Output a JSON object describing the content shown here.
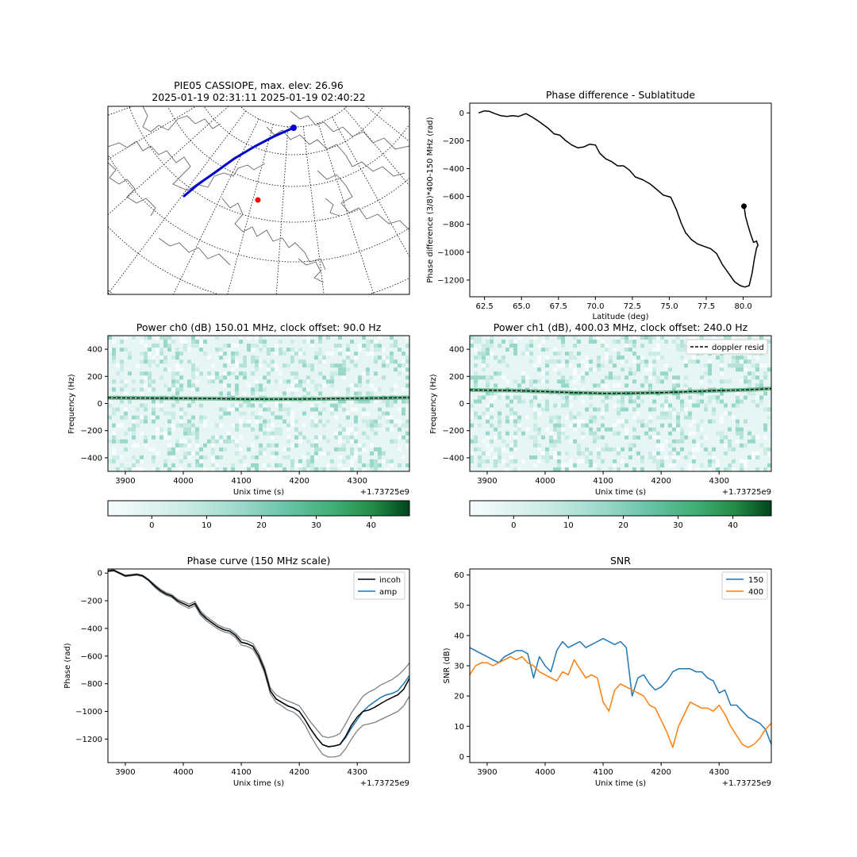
{
  "figure": {
    "map": {
      "title_line1": "PIE05 CASSIOPE, max. elev: 26.96",
      "title_line2": "2025-01-19 02:31:11 2025-01-19 02:40:22",
      "track_color": "#0000cc",
      "station_color": "#ff0000"
    },
    "colorbar": {
      "cmap": "BuGn",
      "ticks": [
        "0",
        "10",
        "20",
        "30",
        "40"
      ]
    }
  },
  "chart_data": [
    {
      "id": "phase_sublat",
      "type": "line",
      "title": "Phase difference - Sublatitude",
      "xlabel": "Latitude (deg)",
      "ylabel": "Phase difference (3/8)*400-150 MHz (rad)",
      "xlim": [
        61.5,
        81.9
      ],
      "ylim": [
        -1320,
        70
      ],
      "xticks": [
        62.5,
        65.0,
        67.5,
        70.0,
        72.5,
        75.0,
        77.5,
        80.0
      ],
      "xtick_labels": [
        "62.5",
        "65.0",
        "67.5",
        "70.0",
        "72.5",
        "75.0",
        "77.5",
        "80.0"
      ],
      "yticks": [
        0,
        -200,
        -400,
        -600,
        -800,
        -1000,
        -1200
      ],
      "ytick_labels": [
        "0",
        "−200",
        "−400",
        "−600",
        "−800",
        "−1000",
        "−1200"
      ],
      "series": [
        {
          "color": "#000000",
          "x": [
            62.1,
            62.5,
            62.8,
            63.2,
            63.6,
            64.0,
            64.4,
            64.8,
            65.3,
            65.8,
            66.3,
            66.8,
            67.2,
            67.6,
            68.0,
            68.4,
            68.8,
            69.2,
            69.6,
            70.0,
            70.3,
            70.7,
            71.1,
            71.5,
            71.9,
            72.3,
            72.7,
            73.2,
            73.7,
            74.1,
            74.6,
            75.1,
            75.5,
            75.8,
            76.1,
            76.5,
            76.9,
            77.4,
            77.8,
            78.2,
            78.6,
            79.0,
            79.4,
            79.8,
            80.1,
            80.4,
            80.6,
            80.75,
            80.9,
            81.0,
            80.9,
            80.7,
            80.5,
            80.3,
            80.15,
            80.1,
            80.05
          ],
          "y": [
            0,
            15,
            12,
            -5,
            -20,
            -25,
            -20,
            -25,
            -5,
            -35,
            -70,
            -110,
            -150,
            -160,
            -200,
            -230,
            -250,
            -245,
            -225,
            -230,
            -290,
            -330,
            -350,
            -380,
            -380,
            -410,
            -460,
            -480,
            -510,
            -545,
            -590,
            -605,
            -700,
            -790,
            -860,
            -910,
            -940,
            -960,
            -975,
            -1010,
            -1090,
            -1150,
            -1210,
            -1240,
            -1250,
            -1240,
            -1150,
            -1050,
            -970,
            -950,
            -920,
            -930,
            -870,
            -800,
            -740,
            -700,
            -670
          ]
        }
      ],
      "markers": [
        {
          "x": 80.05,
          "y": -670
        }
      ]
    },
    {
      "id": "power_ch0",
      "type": "heatmap",
      "title": "Power ch0 (dB) 150.01 MHz, clock offset: 90.0 Hz",
      "xlabel": "Unix time (s)",
      "ylabel": "Frequency (Hz)",
      "offset_label": "+1.73725e9",
      "xlim": [
        3870,
        4390
      ],
      "ylim": [
        -500,
        500
      ],
      "xticks": [
        3900,
        4000,
        4100,
        4200,
        4300
      ],
      "xtick_labels": [
        "3900",
        "4000",
        "4100",
        "4200",
        "4300"
      ],
      "yticks": [
        400,
        200,
        0,
        -200,
        -400
      ],
      "ytick_labels": [
        "400",
        "200",
        "0",
        "−200",
        "−400"
      ],
      "doppler_resid": {
        "x": [
          3870,
          3950,
          4050,
          4100,
          4150,
          4200,
          4250,
          4300,
          4350,
          4390
        ],
        "y": [
          42,
          40,
          36,
          33,
          32,
          33,
          35,
          38,
          41,
          44
        ]
      }
    },
    {
      "id": "power_ch1",
      "type": "heatmap",
      "title": "Power ch1 (dB), 400.03 MHz, clock offset: 240.0 Hz",
      "xlabel": "Unix time (s)",
      "ylabel": "Frequency (Hz)",
      "offset_label": "+1.73725e9",
      "legend": [
        "doppler resid"
      ],
      "xlim": [
        3870,
        4390
      ],
      "ylim": [
        -500,
        500
      ],
      "xticks": [
        3900,
        4000,
        4100,
        4200,
        4300
      ],
      "xtick_labels": [
        "3900",
        "4000",
        "4100",
        "4200",
        "4300"
      ],
      "yticks": [
        400,
        200,
        0,
        -200,
        -400
      ],
      "ytick_labels": [
        "400",
        "200",
        "0",
        "−200",
        "−400"
      ],
      "doppler_resid": {
        "x": [
          3870,
          3950,
          4000,
          4050,
          4100,
          4150,
          4200,
          4250,
          4300,
          4350,
          4390
        ],
        "y": [
          100,
          95,
          88,
          80,
          75,
          76,
          80,
          88,
          95,
          102,
          110
        ]
      }
    },
    {
      "id": "colorbar_ch0",
      "type": "heatmap",
      "title": "",
      "xlim": [
        -8,
        47
      ],
      "xticks": [
        0,
        10,
        20,
        30,
        40
      ]
    },
    {
      "id": "colorbar_ch1",
      "type": "heatmap",
      "title": "",
      "xlim": [
        -8,
        47
      ],
      "xticks": [
        0,
        10,
        20,
        30,
        40
      ]
    },
    {
      "id": "phase_curve",
      "type": "line",
      "title": "Phase curve (150 MHz scale)",
      "xlabel": "Unix time (s)",
      "ylabel": "Phase (rad)",
      "offset_label": "+1.73725e9",
      "legend": [
        "incoh",
        "amp"
      ],
      "xlim": [
        3870,
        4390
      ],
      "ylim": [
        -1370,
        30
      ],
      "xticks": [
        3900,
        4000,
        4100,
        4200,
        4300
      ],
      "xtick_labels": [
        "3900",
        "4000",
        "4100",
        "4200",
        "4300"
      ],
      "yticks": [
        0,
        -200,
        -400,
        -600,
        -800,
        -1000,
        -1200
      ],
      "ytick_labels": [
        "0",
        "−200",
        "−400",
        "−600",
        "−800",
        "−1000",
        "−1200"
      ],
      "x": [
        3870,
        3880,
        3890,
        3900,
        3910,
        3920,
        3930,
        3940,
        3950,
        3960,
        3970,
        3980,
        3990,
        4000,
        4010,
        4020,
        4030,
        4040,
        4050,
        4060,
        4070,
        4080,
        4090,
        4100,
        4110,
        4120,
        4130,
        4140,
        4150,
        4160,
        4170,
        4180,
        4190,
        4200,
        4210,
        4220,
        4230,
        4240,
        4250,
        4260,
        4270,
        4280,
        4290,
        4300,
        4310,
        4320,
        4330,
        4340,
        4350,
        4360,
        4370,
        4380,
        4390
      ],
      "series": [
        {
          "name": "incoh",
          "color": "#000000",
          "values": [
            15,
            20,
            0,
            -20,
            -15,
            -10,
            -20,
            -50,
            -90,
            -125,
            -150,
            -165,
            -200,
            -220,
            -240,
            -220,
            -290,
            -330,
            -360,
            -390,
            -410,
            -420,
            -450,
            -500,
            -510,
            -530,
            -600,
            -700,
            -850,
            -910,
            -935,
            -960,
            -975,
            -1000,
            -1060,
            -1130,
            -1190,
            -1240,
            -1255,
            -1250,
            -1240,
            -1180,
            -1100,
            -1040,
            -1000,
            -990,
            -970,
            -945,
            -920,
            -900,
            -880,
            -840,
            -760
          ]
        },
        {
          "name": "amp",
          "color": "#1f77b4",
          "values": [
            15,
            20,
            0,
            -20,
            -15,
            -10,
            -20,
            -50,
            -90,
            -125,
            -150,
            -165,
            -200,
            -220,
            -240,
            -220,
            -290,
            -330,
            -360,
            -390,
            -410,
            -420,
            -450,
            -500,
            -510,
            -530,
            -600,
            -700,
            -850,
            -910,
            -935,
            -960,
            -975,
            -1000,
            -1060,
            -1130,
            -1190,
            -1240,
            -1255,
            -1250,
            -1240,
            -1190,
            -1120,
            -1060,
            -1000,
            -960,
            -930,
            -900,
            -880,
            -870,
            -850,
            -800,
            -740
          ]
        },
        {
          "color": "#808080",
          "values": [
            20,
            25,
            5,
            -15,
            -10,
            -5,
            -15,
            -45,
            -80,
            -115,
            -140,
            -155,
            -190,
            -205,
            -225,
            -205,
            -275,
            -315,
            -345,
            -375,
            -395,
            -405,
            -435,
            -480,
            -490,
            -510,
            -580,
            -680,
            -830,
            -880,
            -905,
            -925,
            -940,
            -960,
            -1020,
            -1080,
            -1130,
            -1180,
            -1190,
            -1180,
            -1160,
            -1090,
            -1010,
            -950,
            -890,
            -860,
            -840,
            -810,
            -790,
            -770,
            -740,
            -700,
            -650
          ]
        },
        {
          "color": "#808080",
          "values": [
            10,
            15,
            -5,
            -25,
            -20,
            -15,
            -25,
            -55,
            -100,
            -135,
            -160,
            -175,
            -210,
            -235,
            -255,
            -235,
            -305,
            -345,
            -375,
            -405,
            -425,
            -435,
            -465,
            -520,
            -530,
            -550,
            -620,
            -720,
            -870,
            -935,
            -960,
            -990,
            -1005,
            -1040,
            -1100,
            -1180,
            -1250,
            -1310,
            -1330,
            -1330,
            -1320,
            -1270,
            -1200,
            -1140,
            -1100,
            -1090,
            -1080,
            -1060,
            -1040,
            -1020,
            -1000,
            -960,
            -890
          ]
        }
      ]
    },
    {
      "id": "snr",
      "type": "line",
      "title": "SNR",
      "xlabel": "Unix time (s)",
      "ylabel": "SNR (dB)",
      "offset_label": "+1.73725e9",
      "legend": [
        "150",
        "400"
      ],
      "xlim": [
        3870,
        4390
      ],
      "ylim": [
        -2,
        62
      ],
      "xticks": [
        3900,
        4000,
        4100,
        4200,
        4300
      ],
      "xtick_labels": [
        "3900",
        "4000",
        "4100",
        "4200",
        "4300"
      ],
      "yticks": [
        0,
        10,
        20,
        30,
        40,
        50,
        60
      ],
      "ytick_labels": [
        "0",
        "10",
        "20",
        "30",
        "40",
        "50",
        "60"
      ],
      "x": [
        3870,
        3880,
        3890,
        3900,
        3910,
        3920,
        3930,
        3940,
        3950,
        3960,
        3970,
        3980,
        3990,
        4000,
        4010,
        4020,
        4030,
        4040,
        4050,
        4060,
        4070,
        4080,
        4090,
        4100,
        4110,
        4120,
        4130,
        4140,
        4150,
        4160,
        4170,
        4180,
        4190,
        4200,
        4210,
        4220,
        4230,
        4240,
        4250,
        4260,
        4270,
        4280,
        4290,
        4300,
        4310,
        4320,
        4330,
        4340,
        4350,
        4360,
        4370,
        4380,
        4390
      ],
      "series": [
        {
          "name": "150",
          "color": "#1f77b4",
          "values": [
            36,
            35,
            34,
            33,
            32,
            31,
            33,
            34,
            35,
            35,
            34,
            26,
            33,
            30,
            28,
            35,
            38,
            36,
            37,
            38,
            36,
            37,
            38,
            39,
            38,
            37,
            38,
            36,
            20,
            26,
            27,
            24,
            22,
            23,
            25,
            28,
            29,
            29,
            29,
            28,
            28,
            26,
            25,
            21,
            22,
            17,
            17,
            15,
            13,
            12,
            11,
            9,
            4
          ]
        },
        {
          "name": "400",
          "color": "#ff7f0e",
          "values": [
            27,
            30,
            31,
            31,
            30,
            31,
            32,
            33,
            32,
            33,
            31,
            30,
            28,
            27,
            26,
            25,
            28,
            27,
            32,
            29,
            26,
            27,
            26,
            18,
            15,
            22,
            24,
            23,
            22,
            21,
            20,
            17,
            16,
            12,
            8,
            3,
            10,
            14,
            18,
            17,
            16,
            16,
            15,
            17,
            14,
            10,
            7,
            4,
            3,
            4,
            6,
            9,
            11
          ]
        }
      ]
    }
  ]
}
